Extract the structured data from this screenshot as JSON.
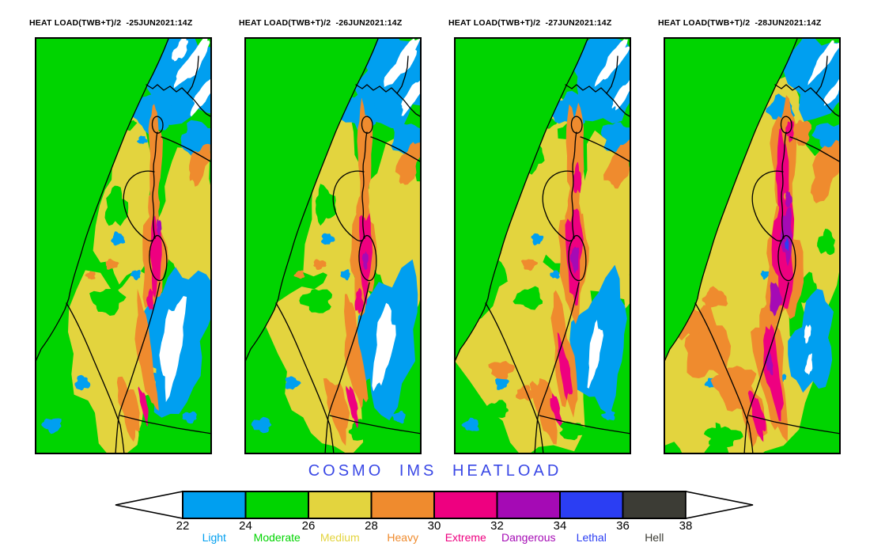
{
  "page": {
    "background": "#ffffff"
  },
  "figure": {
    "panels": [
      {
        "title": "HEAT LOAD(TWB+T)/2  -25JUN2021:14Z",
        "valid_time": "25JUN2021:14Z"
      },
      {
        "title": "HEAT LOAD(TWB+T)/2  -26JUN2021:14Z",
        "valid_time": "26JUN2021:14Z"
      },
      {
        "title": "HEAT LOAD(TWB+T)/2  -27JUN2021:14Z",
        "valid_time": "27JUN2021:14Z"
      },
      {
        "title": "HEAT LOAD(TWB+T)/2  -28JUN2021:14Z",
        "valid_time": "28JUN2021:14Z"
      }
    ]
  },
  "legend": {
    "title": "COSMO IMS HEATLOAD",
    "title_color": "#3a48e6",
    "tick_values": [
      22,
      24,
      26,
      28,
      30,
      32,
      34,
      36,
      38
    ],
    "categories": [
      {
        "label": "Light",
        "color": "#009ff0",
        "range": [
          22,
          24
        ]
      },
      {
        "label": "Moderate",
        "color": "#00d400",
        "range": [
          24,
          26
        ]
      },
      {
        "label": "Medium",
        "color": "#e3d43e",
        "range": [
          26,
          28
        ]
      },
      {
        "label": "Heavy",
        "color": "#ef8b2e",
        "range": [
          28,
          30
        ]
      },
      {
        "label": "Extreme",
        "color": "#ee0080",
        "range": [
          30,
          32
        ]
      },
      {
        "label": "Dangerous",
        "color": "#a50ab5",
        "range": [
          32,
          34
        ]
      },
      {
        "label": "Lethal",
        "color": "#2b3ef3",
        "range": [
          34,
          36
        ]
      },
      {
        "label": "Hell",
        "color": "#3c3c35",
        "range": [
          36,
          38
        ]
      }
    ],
    "below_scale_color": "#ffffff",
    "map_colors": {
      "sea_and_background": "#00d400",
      "below_22": "#ffffff",
      "boundaries": "#000000"
    }
  },
  "chart_data": {
    "type": "heatmap",
    "subtype": "geographic contour-filled forecast maps, 4 daily panels",
    "title": "COSMO IMS HEATLOAD",
    "variable": "HEAT LOAD(TWB+T)/2",
    "region": "Israel and surrounding Eastern Mediterranean",
    "legend_position": "bottom",
    "panels": [
      {
        "valid_time": "25JUN2021:14Z",
        "summary": "Sea and north mostly Moderate (24-26); Medium (26-28) inland and over the Negev; Heavy (28-30) along the Jordan Valley and Arava; Extreme (30-32) core near the Dead Sea with a tiny Dangerous spot; Light (22-24) and below-22 (white) over the northeastern and eastern (Jordanian) highlands."
      },
      {
        "valid_time": "26JUN2021:14Z",
        "summary": "Similar to 25 Jun; slightly larger Extreme band in the rift valley with a small Dangerous patch near the Dead Sea."
      },
      {
        "valid_time": "27JUN2021:14Z",
        "summary": "Medium spreads over the coastal plain and Galilee; wider Heavy band along the valley; longer Extreme band with a Dangerous core near the Dead Sea; cool highland areas shrink."
      },
      {
        "valid_time": "28JUN2021:14Z",
        "summary": "Hottest panel: Medium over most land, widespread Heavy over the Negev and Sinai edge, continuous Extreme band along the whole rift valley, large Dangerous core and a tiny Lethal (34-36) spot near the Dead Sea."
      }
    ],
    "colorbar": {
      "bins": [
        [
          22,
          24,
          "Light"
        ],
        [
          24,
          26,
          "Moderate"
        ],
        [
          26,
          28,
          "Medium"
        ],
        [
          28,
          30,
          "Heavy"
        ],
        [
          30,
          32,
          "Extreme"
        ],
        [
          32,
          34,
          "Dangerous"
        ],
        [
          34,
          36,
          "Lethal"
        ],
        [
          36,
          38,
          "Hell"
        ]
      ],
      "open_ended_arrows": true
    }
  }
}
